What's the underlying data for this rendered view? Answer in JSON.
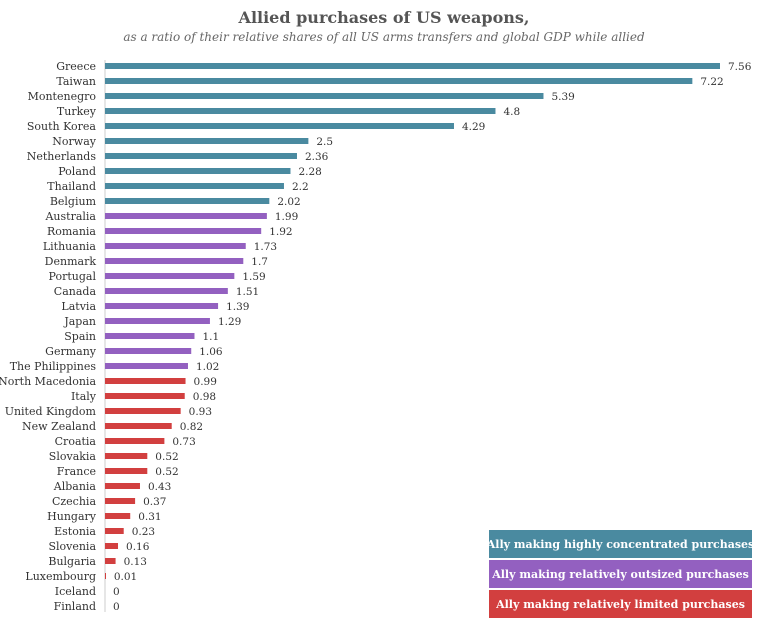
{
  "chart_data": {
    "type": "bar",
    "orientation": "horizontal",
    "title": "Allied purchases of US weapons,",
    "subtitle": "as a ratio of their relative shares of all US arms transfers and global GDP while allied",
    "xlim": [
      0,
      7.56
    ],
    "grid": false,
    "legend_placement": "bottom-right",
    "categories": [
      "Greece",
      "Taiwan",
      "Montenegro",
      "Turkey",
      "South Korea",
      "Norway",
      "Netherlands",
      "Poland",
      "Thailand",
      "Belgium",
      "Australia",
      "Romania",
      "Lithuania",
      "Denmark",
      "Portugal",
      "Canada",
      "Latvia",
      "Japan",
      "Spain",
      "Germany",
      "The Philippines",
      "North Macedonia",
      "Italy",
      "United Kingdom",
      "New Zealand",
      "Croatia",
      "Slovakia",
      "France",
      "Albania",
      "Czechia",
      "Hungary",
      "Estonia",
      "Slovenia",
      "Bulgaria",
      "Luxembourg",
      "Iceland",
      "Finland"
    ],
    "values": [
      7.56,
      7.22,
      5.39,
      4.8,
      4.29,
      2.5,
      2.36,
      2.28,
      2.2,
      2.02,
      1.99,
      1.92,
      1.73,
      1.7,
      1.59,
      1.51,
      1.39,
      1.29,
      1.1,
      1.06,
      1.02,
      0.99,
      0.98,
      0.93,
      0.82,
      0.73,
      0.52,
      0.52,
      0.43,
      0.37,
      0.31,
      0.23,
      0.16,
      0.13,
      0.01,
      0,
      0
    ],
    "value_labels": [
      "7.56",
      "7.22",
      "5.39",
      "4.8",
      "4.29",
      "2.5",
      "2.36",
      "2.28",
      "2.2",
      "2.02",
      "1.99",
      "1.92",
      "1.73",
      "1.7",
      "1.59",
      "1.51",
      "1.39",
      "1.29",
      "1.1",
      "1.06",
      "1.02",
      "0.99",
      "0.98",
      "0.93",
      "0.82",
      "0.73",
      "0.52",
      "0.52",
      "0.43",
      "0.37",
      "0.31",
      "0.23",
      "0.16",
      "0.13",
      "0.01",
      "0",
      "0"
    ],
    "groups": [
      "concentrated",
      "concentrated",
      "concentrated",
      "concentrated",
      "concentrated",
      "concentrated",
      "concentrated",
      "concentrated",
      "concentrated",
      "concentrated",
      "outsized",
      "outsized",
      "outsized",
      "outsized",
      "outsized",
      "outsized",
      "outsized",
      "outsized",
      "outsized",
      "outsized",
      "outsized",
      "limited",
      "limited",
      "limited",
      "limited",
      "limited",
      "limited",
      "limited",
      "limited",
      "limited",
      "limited",
      "limited",
      "limited",
      "limited",
      "limited",
      "limited",
      "limited"
    ],
    "legend": [
      {
        "key": "concentrated",
        "label": "Ally making highly concentrated purchases",
        "color": "#4a8aa0"
      },
      {
        "key": "outsized",
        "label": "Ally making relatively outsized purchases",
        "color": "#9360c0"
      },
      {
        "key": "limited",
        "label": "Ally making relatively limited purchases",
        "color": "#d23f3f"
      }
    ]
  }
}
